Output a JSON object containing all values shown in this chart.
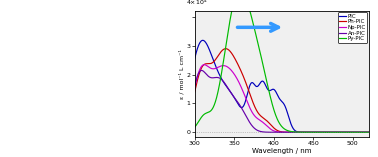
{
  "xlim": [
    300,
    520
  ],
  "ylim": [
    -0.15,
    4.2
  ],
  "xlabel": "Wavelength / nm",
  "ylabel": "ε / mol⁻¹ L cm⁻¹",
  "legend": [
    "PIC",
    "Ph-PIC",
    "Np-PIC",
    "An-PIC",
    "Py-PIC"
  ],
  "colors": {
    "PIC": "#0000bb",
    "Ph-PIC": "#cc0000",
    "Np-PIC": "#cc00cc",
    "An-PIC": "#6600aa",
    "Py-PIC": "#00bb00"
  },
  "background": "#f0f0f0",
  "arrow_color": "#3399ff"
}
